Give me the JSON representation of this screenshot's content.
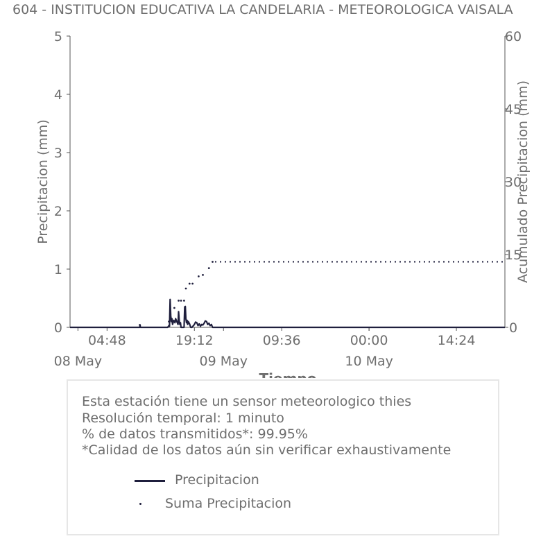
{
  "title": "604 - INSTITUCION EDUCATIVA LA CANDELARIA - METEOROLOGICA VAISALA",
  "colors": {
    "series": "#1f1f3d",
    "text": "#6e6e6e",
    "axis": "#555555",
    "box_border": "#e6e6e6"
  },
  "chart_data": {
    "type": "line",
    "title": "604 - INSTITUCION EDUCATIVA LA CANDELARIA - METEOROLOGICA VAISALA",
    "xlabel": "Tiempo",
    "ylabel": "Precipitacion (mm)",
    "y2label": "Acumulado Precipitacion (mm)",
    "ylim": [
      0,
      5
    ],
    "y2lim": [
      0,
      60
    ],
    "yticks": [
      "0",
      "1",
      "2",
      "3",
      "4",
      "5"
    ],
    "y2ticks": [
      "0",
      "15",
      "30",
      "45",
      "60"
    ],
    "xticks": [
      {
        "t": 4.8,
        "time": "04:48",
        "date": ""
      },
      {
        "t": 19.2,
        "time": "19:12",
        "date": ""
      },
      {
        "t": 33.6,
        "time": "09:36",
        "date": ""
      },
      {
        "t": 48.0,
        "time": "00:00",
        "date": ""
      },
      {
        "t": 62.4,
        "time": "14:24",
        "date": ""
      },
      {
        "t": 0.0,
        "time": "",
        "date": "08 May"
      },
      {
        "t": 24.0,
        "time": "",
        "date": "09 May"
      },
      {
        "t": 48.0,
        "time": "",
        "date": "10 May"
      }
    ],
    "xlim_hours_from_08_may": [
      -1.3,
      70.4
    ],
    "grid": false,
    "legend": "bottom",
    "series": [
      {
        "name": "Precipitacion",
        "style": "line",
        "axis": "left",
        "x": [
          -1.3,
          10.2,
          10.25,
          10.3,
          14.8,
          15.0,
          15.1,
          15.2,
          15.3,
          15.4,
          15.5,
          15.6,
          15.8,
          16.0,
          16.1,
          16.3,
          16.5,
          16.6,
          16.7,
          16.8,
          16.9,
          17.0,
          17.5,
          17.6,
          17.7,
          17.8,
          17.9,
          18.0,
          18.1,
          18.2,
          18.4,
          18.6,
          18.8,
          19.2,
          19.4,
          19.6,
          19.8,
          20.0,
          20.2,
          20.4,
          20.6,
          20.8,
          21.0,
          21.2,
          21.4,
          21.6,
          21.8,
          22.0,
          22.2,
          70.4
        ],
        "y": [
          0,
          0,
          0.04,
          0,
          0,
          0.03,
          0.02,
          0.48,
          0.2,
          0.1,
          0.15,
          0.05,
          0.12,
          0.08,
          0.15,
          0.1,
          0.05,
          0.27,
          0.12,
          0.05,
          0.08,
          0,
          0,
          0.35,
          0.36,
          0.15,
          0.08,
          0.12,
          0.05,
          0.1,
          0.06,
          0,
          0,
          0.05,
          0.09,
          0.08,
          0.03,
          0.06,
          0.02,
          0.05,
          0.04,
          0.07,
          0.11,
          0.1,
          0.05,
          0.07,
          0.03,
          0.05,
          0,
          0
        ]
      },
      {
        "name": "Suma Precipitacion",
        "style": "dots",
        "axis": "right",
        "x": [
          10.2,
          15.0,
          15.9,
          16.6,
          17.0,
          17.5,
          17.8,
          18.4,
          18.9,
          19.9,
          20.6,
          21.6,
          22.2,
          22.6,
          70.4
        ],
        "y": [
          0.5,
          1.2,
          4.0,
          5.5,
          5.5,
          5.5,
          8.0,
          9.0,
          9.0,
          10.5,
          10.8,
          12.2,
          13.5,
          13.5,
          13.5
        ]
      }
    ]
  },
  "info": {
    "lines": [
      "Esta estación tiene un sensor meteorologico thies",
      "Resolución temporal: 1 minuto",
      "% de datos transmitidos*: 99.95%",
      "*Calidad de los datos aún sin verificar exhaustivamente"
    ],
    "legend": [
      {
        "label": "Precipitacion",
        "marker": "line"
      },
      {
        "label": "Suma Precipitacion",
        "marker": "dot"
      }
    ]
  }
}
